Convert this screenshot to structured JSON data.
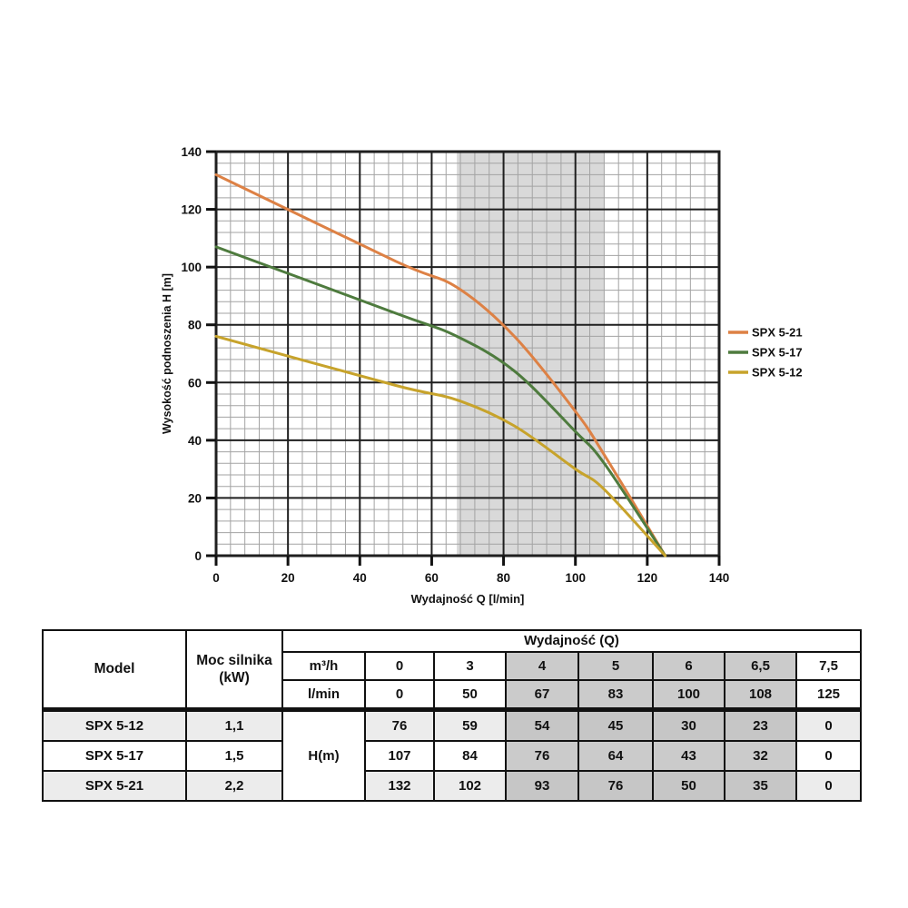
{
  "chart_data": {
    "type": "line",
    "title": "",
    "xlabel": "Wydajność Q [l/min]",
    "ylabel": "Wysokość podnoszenia H [m]",
    "xlim": [
      0,
      140
    ],
    "ylim": [
      0,
      140
    ],
    "xticks": [
      0,
      20,
      40,
      60,
      80,
      100,
      120,
      140
    ],
    "yticks": [
      0,
      20,
      40,
      60,
      80,
      100,
      120,
      140
    ],
    "minor_step": 4,
    "grid": "major+minor",
    "legend_position": "right",
    "band": {
      "x_from": 67,
      "x_to": 108,
      "color": "#d9d9d9"
    },
    "colors": {
      "major_grid": "#1f1f1f",
      "minor_grid": "#a3a3a3",
      "axis_text": "#111111"
    },
    "series": [
      {
        "name": "SPX 5-21",
        "color": "#dd8145",
        "points": [
          [
            0,
            132
          ],
          [
            50,
            102
          ],
          [
            67,
            93
          ],
          [
            83,
            76
          ],
          [
            100,
            50
          ],
          [
            108,
            35
          ],
          [
            125,
            0
          ]
        ]
      },
      {
        "name": "SPX 5-17",
        "color": "#4e7b3e",
        "points": [
          [
            0,
            107
          ],
          [
            50,
            84
          ],
          [
            67,
            76
          ],
          [
            83,
            64
          ],
          [
            100,
            43
          ],
          [
            108,
            32
          ],
          [
            125,
            0
          ]
        ]
      },
      {
        "name": "SPX 5-12",
        "color": "#c7a32b",
        "points": [
          [
            0,
            76
          ],
          [
            50,
            59
          ],
          [
            67,
            54
          ],
          [
            83,
            45
          ],
          [
            100,
            30
          ],
          [
            108,
            23
          ],
          [
            125,
            0
          ]
        ]
      }
    ]
  },
  "table": {
    "model_header": "Model",
    "power_header": "Moc silnika (kW)",
    "wydajnosc_header": "Wydajność (Q)",
    "m3h_label": "m³/h",
    "m3h_values": [
      "0",
      "3",
      "4",
      "5",
      "6",
      "6,5",
      "7,5"
    ],
    "lmin_label": "l/min",
    "lmin_values": [
      "0",
      "50",
      "67",
      "83",
      "100",
      "108",
      "125"
    ],
    "h_label": "H(m)",
    "shaded_value_cols": [
      2,
      3,
      4,
      5
    ],
    "striped_rows": [
      0,
      2
    ],
    "rows": [
      {
        "model": "SPX 5-12",
        "power": "1,1",
        "values": [
          "76",
          "59",
          "54",
          "45",
          "30",
          "23",
          "0"
        ]
      },
      {
        "model": "SPX 5-17",
        "power": "1,5",
        "values": [
          "107",
          "84",
          "76",
          "64",
          "43",
          "32",
          "0"
        ]
      },
      {
        "model": "SPX 5-21",
        "power": "2,2",
        "values": [
          "132",
          "102",
          "93",
          "76",
          "50",
          "35",
          "0"
        ]
      }
    ]
  }
}
